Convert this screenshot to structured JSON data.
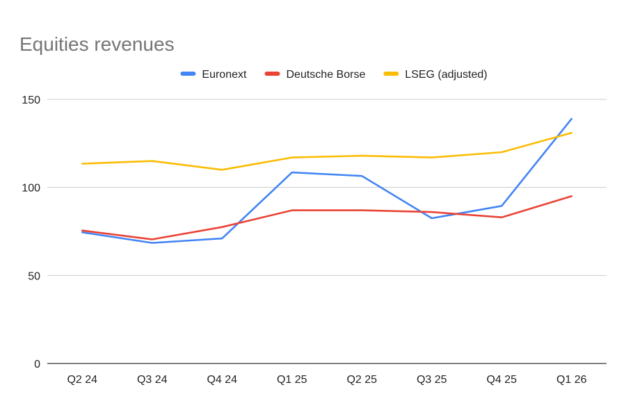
{
  "chart_data": {
    "type": "line",
    "title": "Equities revenues",
    "categories": [
      "Q2 24",
      "Q3 24",
      "Q4 24",
      "Q1 25",
      "Q2 25",
      "Q3 25",
      "Q4 25",
      "Q1 26"
    ],
    "series": [
      {
        "name": "Euronext",
        "color": "#4285f4",
        "values": [
          74.5,
          68.5,
          71,
          108.5,
          106.5,
          82.5,
          89.5,
          139
        ]
      },
      {
        "name": "Deutsche Borse",
        "color": "#ea4335",
        "values": [
          75.5,
          70.5,
          77.5,
          87,
          87,
          86,
          83,
          95
        ]
      },
      {
        "name": "LSEG (adjusted)",
        "color": "#fbbc04",
        "values": [
          113.5,
          115,
          110,
          117,
          118,
          117,
          120,
          131
        ]
      }
    ],
    "ylim": [
      0,
      150
    ],
    "yticks": [
      0,
      50,
      100,
      150
    ],
    "xlabel": "",
    "ylabel": "",
    "grid": true,
    "legend_position": "top"
  }
}
